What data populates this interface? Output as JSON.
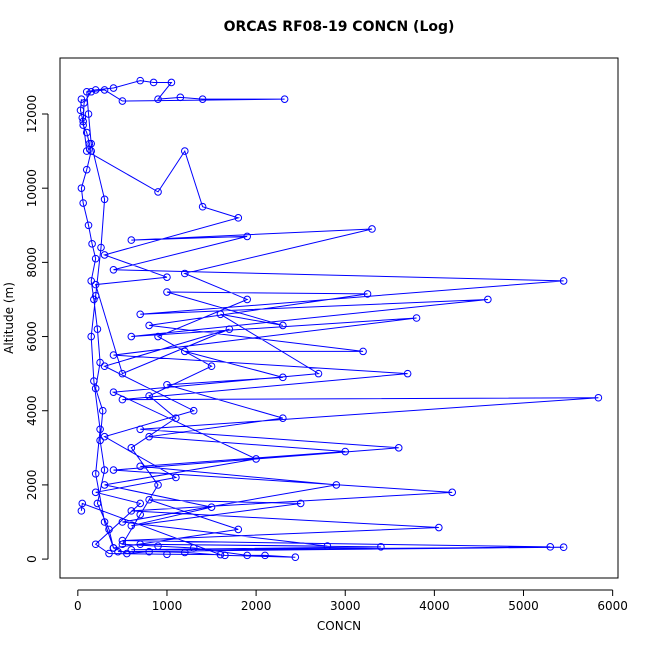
{
  "chart_data": {
    "type": "line",
    "title": "ORCAS RF08-19 CONCN (Log)",
    "x_label": "CONCN",
    "y_label": "Altitude (m)",
    "color": "#0000ff",
    "x": [
      40,
      30,
      50,
      60,
      100,
      130,
      150,
      100,
      40,
      60,
      120,
      160,
      200,
      150,
      180,
      220,
      250,
      200,
      280,
      250,
      300,
      220,
      350,
      400,
      550,
      800,
      1200,
      1650,
      2440,
      2100,
      1900,
      1300,
      900,
      500,
      700,
      900,
      600,
      1100,
      800,
      1500,
      900,
      1900,
      1200,
      3300,
      600,
      1900,
      400,
      5450,
      700,
      4600,
      600,
      3800,
      400,
      3700,
      500,
      5840,
      700,
      3600,
      400,
      4200,
      600,
      4050,
      500,
      5300,
      450,
      5450,
      600,
      3400,
      700,
      2800,
      500,
      2900,
      700,
      3000,
      800,
      2300,
      1000,
      2300,
      1200,
      3200,
      800,
      3250,
      1000,
      2300,
      1600,
      2700,
      400,
      2000,
      300,
      1500,
      600,
      2500,
      800,
      1800,
      400,
      300,
      200,
      250,
      180,
      150,
      200,
      260,
      300,
      150,
      120,
      100,
      200,
      400,
      700,
      850,
      1050,
      900,
      1150,
      1400,
      2320,
      500,
      300,
      150,
      70,
      60,
      100,
      900,
      1200,
      1400,
      1800,
      300,
      1000,
      200,
      500,
      1700,
      300,
      1300,
      300,
      1100,
      200,
      700,
      200,
      350,
      1000,
      1600,
      50,
      40
    ],
    "y": [
      12400,
      12100,
      11900,
      11700,
      11500,
      11200,
      11000,
      10500,
      10000,
      9600,
      9000,
      8500,
      8100,
      7500,
      7000,
      6200,
      5300,
      4600,
      4000,
      3200,
      2400,
      1500,
      800,
      300,
      150,
      200,
      180,
      100,
      50,
      100,
      100,
      300,
      350,
      400,
      1200,
      2000,
      3000,
      3800,
      4400,
      5200,
      6000,
      7000,
      7700,
      8900,
      8600,
      8700,
      7800,
      7500,
      6600,
      7000,
      6000,
      6500,
      5500,
      5000,
      4300,
      4350,
      3500,
      3000,
      2400,
      1800,
      1300,
      850,
      500,
      330,
      200,
      320,
      250,
      330,
      400,
      350,
      1000,
      2000,
      2500,
      2900,
      3300,
      3800,
      4700,
      4900,
      5600,
      5600,
      6300,
      7150,
      7200,
      6300,
      6600,
      5000,
      4500,
      2700,
      2000,
      1400,
      900,
      1500,
      1600,
      800,
      300,
      1000,
      2300,
      3500,
      4800,
      6000,
      7100,
      8400,
      9700,
      11200,
      12000,
      12600,
      12650,
      12700,
      12900,
      12850,
      12850,
      12400,
      12450,
      12400,
      12400,
      12350,
      12650,
      12600,
      12300,
      11800,
      11000,
      9900,
      11000,
      9500,
      9200,
      8200,
      7600,
      7400,
      5000,
      6200,
      5200,
      4000,
      3300,
      2200,
      1800,
      1500,
      400,
      150,
      130,
      120,
      1500,
      1300
    ],
    "xlim": [
      -200,
      6060
    ],
    "ylim": [
      -510,
      13510
    ],
    "xticks": [
      0,
      1000,
      2000,
      3000,
      4000,
      5000,
      6000
    ],
    "yticks": [
      0,
      2000,
      4000,
      6000,
      8000,
      10000,
      12000
    ]
  }
}
